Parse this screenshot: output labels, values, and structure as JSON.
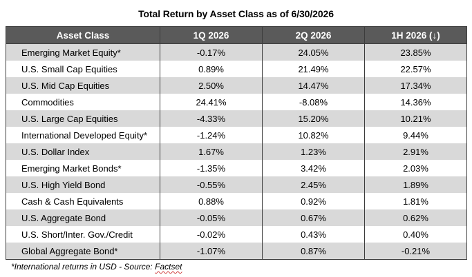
{
  "title": "Total Return by Asset Class as of 6/30/2026",
  "columns": [
    "Asset Class",
    "1Q 2026",
    "2Q 2026",
    "1H 2026 (↓)"
  ],
  "rows": [
    {
      "name": "Emerging Market Equity*",
      "q1": "-0.17%",
      "q2": "24.05%",
      "h1": "23.85%"
    },
    {
      "name": "U.S. Small Cap Equities",
      "q1": "0.89%",
      "q2": "21.49%",
      "h1": "22.57%"
    },
    {
      "name": "U.S. Mid Cap Equities",
      "q1": "2.50%",
      "q2": "14.47%",
      "h1": "17.34%"
    },
    {
      "name": "Commodities",
      "q1": "24.41%",
      "q2": "-8.08%",
      "h1": "14.36%"
    },
    {
      "name": "U.S. Large Cap Equities",
      "q1": "-4.33%",
      "q2": "15.20%",
      "h1": "10.21%"
    },
    {
      "name": "International Developed Equity*",
      "q1": "-1.24%",
      "q2": "10.82%",
      "h1": "9.44%"
    },
    {
      "name": "U.S. Dollar Index",
      "q1": "1.67%",
      "q2": "1.23%",
      "h1": "2.91%"
    },
    {
      "name": "Emerging Market Bonds*",
      "q1": "-1.35%",
      "q2": "3.42%",
      "h1": "2.03%"
    },
    {
      "name": "U.S. High Yield Bond",
      "q1": "-0.55%",
      "q2": "2.45%",
      "h1": "1.89%"
    },
    {
      "name": "Cash & Cash Equivalents",
      "q1": "0.88%",
      "q2": "0.92%",
      "h1": "1.81%"
    },
    {
      "name": "U.S. Aggregate Bond",
      "q1": "-0.05%",
      "q2": "0.67%",
      "h1": "0.62%"
    },
    {
      "name": "U.S. Short/Inter. Gov./Credit",
      "q1": "-0.02%",
      "q2": "0.43%",
      "h1": "0.40%"
    },
    {
      "name": "Global Aggregate Bond*",
      "q1": "-1.07%",
      "q2": "0.87%",
      "h1": "-0.21%"
    }
  ],
  "footnote": {
    "text": "*International returns in USD - Source: ",
    "source": "Factset"
  }
}
